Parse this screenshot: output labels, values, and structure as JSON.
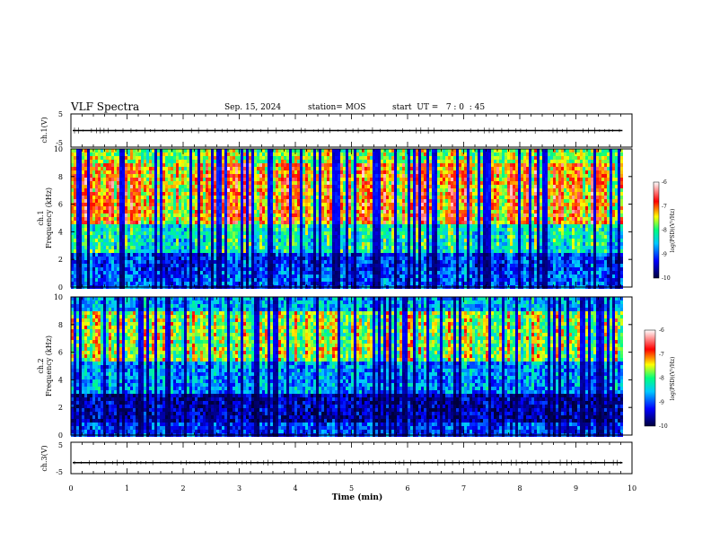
{
  "header": {
    "title": "VLF Spectra",
    "date": "Sep. 15, 2024",
    "station": "station= MOS",
    "start_ut": "start  UT =   7 : 0  : 45"
  },
  "chart_data": [
    {
      "type": "line",
      "panel": "ch1-waveform",
      "ylabel": "ch.1(V)",
      "ylim": [
        -5,
        5
      ],
      "yticks": [
        "5",
        "-5"
      ],
      "xlim": [
        0,
        10
      ],
      "baseline_value": 0
    },
    {
      "type": "heatmap",
      "panel": "ch1-spectrogram",
      "ylabel": "ch.1\nFrequency (kHz)",
      "ylabel_line1": "ch.1",
      "ylabel_line2": "Frequency (kHz)",
      "ylim": [
        0,
        10
      ],
      "yticks": [
        "0",
        "2",
        "4",
        "6",
        "8",
        "10"
      ],
      "xlim": [
        0,
        10
      ],
      "data_end_min": 9.83,
      "colorbar": {
        "label": "log(PSD)(V²/Hz)",
        "range": [
          -10,
          -6
        ],
        "ticks": [
          "-6",
          "-7",
          "-8",
          "-9",
          "-10"
        ]
      }
    },
    {
      "type": "heatmap",
      "panel": "ch2-spectrogram",
      "ylabel": "ch.2\nFrequency (kHz)",
      "ylabel_line1": "ch.2",
      "ylabel_line2": "Frequency (kHz)",
      "ylim": [
        0,
        10
      ],
      "yticks": [
        "0",
        "2",
        "4",
        "6",
        "8",
        "10"
      ],
      "xlim": [
        0,
        10
      ],
      "data_end_min": 9.83,
      "colorbar": {
        "label": "log(PSD)(V²/Hz)",
        "range": [
          -10,
          -6
        ],
        "ticks": [
          "-6",
          "-7",
          "-8",
          "-9",
          "-10"
        ]
      }
    },
    {
      "type": "line",
      "panel": "ch3-waveform",
      "ylabel": "ch.3(V)",
      "ylim": [
        -5,
        5
      ],
      "yticks": [
        "5",
        "-5"
      ],
      "xlim": [
        0,
        10
      ],
      "baseline_value": -1.5,
      "xlabel": "Time  (min)",
      "xticks": [
        "0",
        "1",
        "2",
        "3",
        "4",
        "5",
        "6",
        "7",
        "8",
        "9",
        "10"
      ]
    }
  ],
  "colors": {
    "colormap": [
      "#00003c",
      "#0000ff",
      "#00c8ff",
      "#00ff7f",
      "#ffff00",
      "#ff0000",
      "#ffffff"
    ],
    "axis": "#000000",
    "background": "#ffffff"
  }
}
